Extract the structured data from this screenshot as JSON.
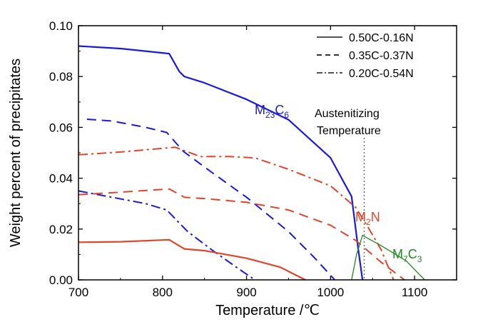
{
  "chart_data": {
    "type": "line",
    "xlabel": "Temperature /℃",
    "ylabel": "Weight percent of precipitates",
    "xlim": [
      700,
      1150
    ],
    "ylim": [
      0,
      0.1
    ],
    "x_ticks": [
      "700",
      "800",
      "900",
      "1000",
      "1100"
    ],
    "y_ticks": [
      "0.00",
      "0.02",
      "0.04",
      "0.06",
      "0.08",
      "0.10"
    ],
    "legend": {
      "position": "top-right",
      "entries": [
        {
          "label": "0.50C-0.16N",
          "style": "solid"
        },
        {
          "label": "0.35C-0.37N",
          "style": "dashed"
        },
        {
          "label": "0.20C-0.54N",
          "style": "dashdot"
        }
      ]
    },
    "annotation": {
      "lines": [
        "Austenitizing",
        "Temperature"
      ],
      "x": 1040
    },
    "phase_labels": [
      {
        "main": "M",
        "sub1": "23",
        "mid": "C",
        "sub2": "6",
        "color": "#1a1adb"
      },
      {
        "main": "M",
        "sub1": "2",
        "mid": "N",
        "sub2": "",
        "color": "#e0452a"
      },
      {
        "main": "M",
        "sub1": "7",
        "mid": "C",
        "sub2": "3",
        "color": "#1f8a1f"
      }
    ],
    "series": [
      {
        "phase": "M23C6",
        "alloy": "0.50C-0.16N",
        "style": "solid",
        "color": "#1a1adb",
        "points": [
          [
            700,
            0.092
          ],
          [
            750,
            0.091
          ],
          [
            800,
            0.0893
          ],
          [
            808,
            0.089
          ],
          [
            820,
            0.082
          ],
          [
            826,
            0.08
          ],
          [
            850,
            0.0775
          ],
          [
            900,
            0.071
          ],
          [
            950,
            0.063
          ],
          [
            1000,
            0.048
          ],
          [
            1025,
            0.0328
          ],
          [
            1033,
            0.012
          ],
          [
            1038,
            0.0
          ]
        ]
      },
      {
        "phase": "M23C6",
        "alloy": "0.35C-0.37N",
        "style": "dashed",
        "color": "#1a1adb",
        "points": [
          [
            710,
            0.0632
          ],
          [
            740,
            0.0625
          ],
          [
            780,
            0.06
          ],
          [
            805,
            0.058
          ],
          [
            825,
            0.0505
          ],
          [
            860,
            0.042
          ],
          [
            900,
            0.0325
          ],
          [
            950,
            0.019
          ],
          [
            980,
            0.009
          ],
          [
            1005,
            0.0
          ]
        ]
      },
      {
        "phase": "M23C6",
        "alloy": "0.20C-0.54N",
        "style": "dashdot",
        "color": "#1a1adb",
        "points": [
          [
            700,
            0.035
          ],
          [
            740,
            0.0325
          ],
          [
            780,
            0.03
          ],
          [
            805,
            0.0275
          ],
          [
            830,
            0.019
          ],
          [
            860,
            0.0115
          ],
          [
            890,
            0.0045
          ],
          [
            910,
            0.0
          ]
        ]
      },
      {
        "phase": "M2N",
        "alloy": "0.50C-0.16N",
        "style": "solid",
        "color": "#e0452a",
        "points": [
          [
            700,
            0.0148
          ],
          [
            750,
            0.015
          ],
          [
            808,
            0.0158
          ],
          [
            826,
            0.0122
          ],
          [
            850,
            0.0115
          ],
          [
            900,
            0.0085
          ],
          [
            940,
            0.005
          ],
          [
            970,
            0.0
          ]
        ]
      },
      {
        "phase": "M2N",
        "alloy": "0.35C-0.37N",
        "style": "dashed",
        "color": "#e0452a",
        "points": [
          [
            700,
            0.0335
          ],
          [
            750,
            0.0345
          ],
          [
            808,
            0.0358
          ],
          [
            826,
            0.0325
          ],
          [
            850,
            0.032
          ],
          [
            900,
            0.0305
          ],
          [
            950,
            0.0275
          ],
          [
            1000,
            0.0215
          ],
          [
            1030,
            0.0155
          ],
          [
            1060,
            0.007
          ],
          [
            1088,
            0.0
          ]
        ]
      },
      {
        "phase": "M2N",
        "alloy": "0.20C-0.54N",
        "style": "dashdot",
        "color": "#e0452a",
        "points": [
          [
            700,
            0.0492
          ],
          [
            750,
            0.0503
          ],
          [
            815,
            0.0522
          ],
          [
            845,
            0.0485
          ],
          [
            880,
            0.0485
          ],
          [
            910,
            0.048
          ],
          [
            950,
            0.0435
          ],
          [
            1000,
            0.037
          ],
          [
            1030,
            0.0285
          ],
          [
            1045,
            0.0205
          ],
          [
            1060,
            0.012
          ],
          [
            1075,
            0.0
          ]
        ]
      },
      {
        "phase": "M7C3",
        "alloy": "0.50C-0.16N",
        "style": "solid",
        "color": "#1f8a1f",
        "points": [
          [
            1025,
            0.0
          ],
          [
            1031,
            0.01
          ],
          [
            1038,
            0.0175
          ],
          [
            1060,
            0.0135
          ],
          [
            1090,
            0.0075
          ],
          [
            1112,
            0.0
          ]
        ]
      }
    ]
  }
}
